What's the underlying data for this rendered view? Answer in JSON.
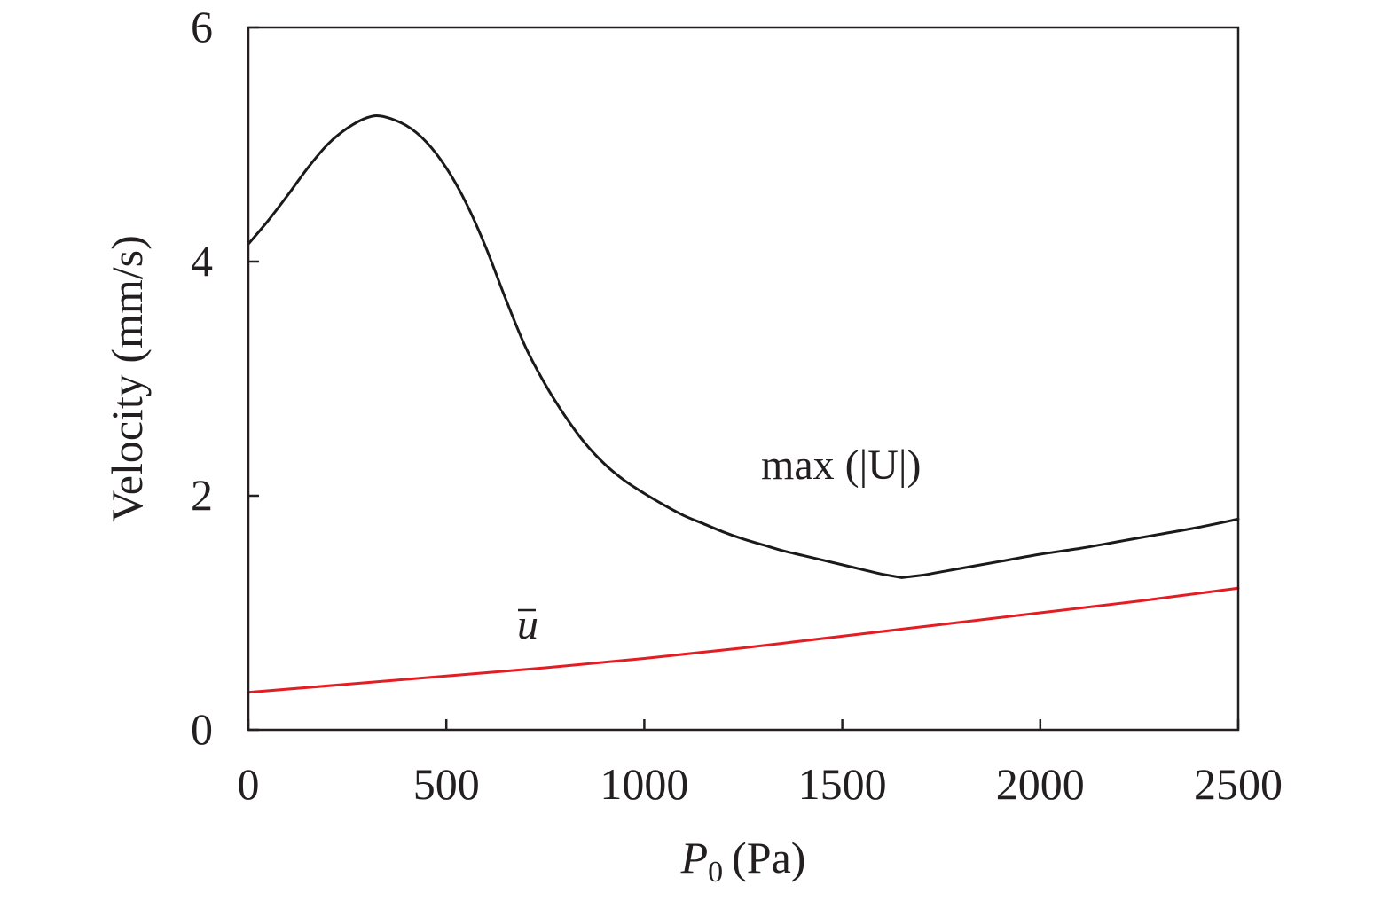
{
  "chart_data": {
    "type": "line",
    "xlabel": {
      "symbol": "P",
      "subscript": "0",
      "unit": "(Pa)"
    },
    "ylabel": "Velocity (mm/s)",
    "xlim": [
      0,
      2500
    ],
    "ylim": [
      0,
      6
    ],
    "x_ticks": [
      "0",
      "500",
      "1000",
      "1500",
      "2000",
      "2500"
    ],
    "y_ticks": [
      "0",
      "2",
      "4",
      "6"
    ],
    "grid": false,
    "legend": "none",
    "series": [
      {
        "name": "max (|U|)",
        "color": "#1a1a1a",
        "x": [
          0,
          50,
          100,
          150,
          200,
          250,
          300,
          340,
          400,
          450,
          500,
          550,
          600,
          650,
          700,
          750,
          800,
          850,
          900,
          950,
          1000,
          1050,
          1100,
          1150,
          1200,
          1250,
          1300,
          1350,
          1400,
          1450,
          1500,
          1550,
          1600,
          1650,
          1700,
          1800,
          1900,
          2000,
          2100,
          2200,
          2300,
          2400,
          2500
        ],
        "y": [
          4.15,
          4.35,
          4.57,
          4.8,
          5.0,
          5.14,
          5.23,
          5.24,
          5.16,
          5.02,
          4.8,
          4.5,
          4.12,
          3.68,
          3.27,
          2.95,
          2.68,
          2.45,
          2.27,
          2.13,
          2.02,
          1.92,
          1.83,
          1.76,
          1.69,
          1.63,
          1.58,
          1.53,
          1.49,
          1.45,
          1.41,
          1.37,
          1.33,
          1.3,
          1.32,
          1.38,
          1.44,
          1.5,
          1.55,
          1.61,
          1.67,
          1.73,
          1.8
        ]
      },
      {
        "name": "ū",
        "color": "#e21d24",
        "x": [
          0,
          250,
          500,
          750,
          1000,
          1250,
          1500,
          1750,
          2000,
          2250,
          2500
        ],
        "y": [
          0.32,
          0.39,
          0.46,
          0.53,
          0.61,
          0.7,
          0.8,
          0.9,
          1.0,
          1.1,
          1.21
        ]
      }
    ],
    "annotations": [
      {
        "text": "max (|U|)",
        "style": "upright",
        "x": 1300,
        "y": 2.2
      },
      {
        "text": "u",
        "style": "italic-overline",
        "x": 700,
        "y": 0.9
      }
    ]
  }
}
